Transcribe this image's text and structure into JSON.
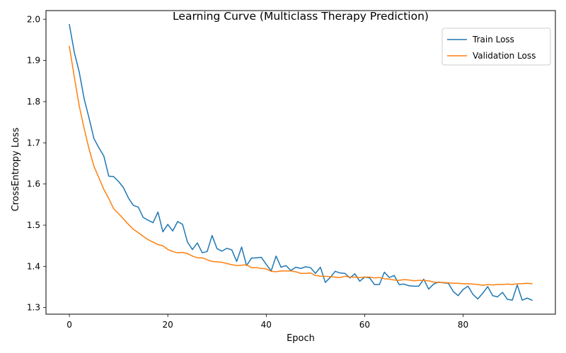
{
  "chart_data": {
    "type": "line",
    "title": "Learning Curve (Multiclass Therapy Prediction)",
    "xlabel": "Epoch",
    "ylabel": "CrossEntropy Loss",
    "xlim": [
      -4.75,
      98.75
    ],
    "ylim": [
      1.284,
      2.021
    ],
    "xticks": [
      0,
      20,
      40,
      60,
      80
    ],
    "xtick_labels": [
      "0",
      "20",
      "40",
      "60",
      "80"
    ],
    "yticks": [
      1.3,
      1.4,
      1.5,
      1.6,
      1.7,
      1.8,
      1.9,
      2.0
    ],
    "ytick_labels": [
      "1.3",
      "1.4",
      "1.5",
      "1.6",
      "1.7",
      "1.8",
      "1.9",
      "2.0"
    ],
    "grid": false,
    "legend_position": "top-right",
    "series": [
      {
        "name": "Train Loss",
        "color": "#1f77b4",
        "x": [
          0,
          1,
          2,
          3,
          4,
          5,
          6,
          7,
          8,
          9,
          10,
          11,
          12,
          13,
          14,
          15,
          16,
          17,
          18,
          19,
          20,
          21,
          22,
          23,
          24,
          25,
          26,
          27,
          28,
          29,
          30,
          31,
          32,
          33,
          34,
          35,
          36,
          37,
          38,
          39,
          40,
          41,
          42,
          43,
          44,
          45,
          46,
          47,
          48,
          49,
          50,
          51,
          52,
          53,
          54,
          55,
          56,
          57,
          58,
          59,
          60,
          61,
          62,
          63,
          64,
          65,
          66,
          67,
          68,
          69,
          70,
          71,
          72,
          73,
          74,
          75,
          76,
          77,
          78,
          79,
          80,
          81,
          82,
          83,
          84,
          85,
          86,
          87,
          88,
          89,
          90,
          91,
          92,
          93,
          94
        ],
        "y": [
          1.987,
          1.92,
          1.872,
          1.807,
          1.76,
          1.71,
          1.688,
          1.668,
          1.619,
          1.618,
          1.606,
          1.591,
          1.566,
          1.548,
          1.544,
          1.519,
          1.512,
          1.506,
          1.532,
          1.484,
          1.502,
          1.486,
          1.509,
          1.502,
          1.459,
          1.441,
          1.457,
          1.433,
          1.436,
          1.475,
          1.443,
          1.437,
          1.444,
          1.44,
          1.412,
          1.447,
          1.402,
          1.42,
          1.421,
          1.422,
          1.405,
          1.389,
          1.425,
          1.398,
          1.402,
          1.39,
          1.398,
          1.395,
          1.399,
          1.397,
          1.383,
          1.398,
          1.361,
          1.373,
          1.388,
          1.384,
          1.383,
          1.372,
          1.382,
          1.364,
          1.374,
          1.372,
          1.356,
          1.356,
          1.386,
          1.373,
          1.378,
          1.356,
          1.357,
          1.353,
          1.352,
          1.352,
          1.369,
          1.345,
          1.357,
          1.362,
          1.36,
          1.359,
          1.339,
          1.329,
          1.344,
          1.352,
          1.332,
          1.321,
          1.335,
          1.351,
          1.329,
          1.326,
          1.337,
          1.32,
          1.318,
          1.355,
          1.318,
          1.323,
          1.318
        ]
      },
      {
        "name": "Validation Loss",
        "color": "#ff7f0e",
        "x": [
          0,
          1,
          2,
          3,
          4,
          5,
          6,
          7,
          8,
          9,
          10,
          11,
          12,
          13,
          14,
          15,
          16,
          17,
          18,
          19,
          20,
          21,
          22,
          23,
          24,
          25,
          26,
          27,
          28,
          29,
          30,
          31,
          32,
          33,
          34,
          35,
          36,
          37,
          38,
          39,
          40,
          41,
          42,
          43,
          44,
          45,
          46,
          47,
          48,
          49,
          50,
          51,
          52,
          53,
          54,
          55,
          56,
          57,
          58,
          59,
          60,
          61,
          62,
          63,
          64,
          65,
          66,
          67,
          68,
          69,
          70,
          71,
          72,
          73,
          74,
          75,
          76,
          77,
          78,
          79,
          80,
          81,
          82,
          83,
          84,
          85,
          86,
          87,
          88,
          89,
          90,
          91,
          92,
          93,
          94
        ],
        "y": [
          1.934,
          1.86,
          1.79,
          1.735,
          1.685,
          1.643,
          1.615,
          1.587,
          1.565,
          1.54,
          1.528,
          1.515,
          1.502,
          1.49,
          1.482,
          1.473,
          1.465,
          1.459,
          1.453,
          1.45,
          1.441,
          1.436,
          1.433,
          1.434,
          1.431,
          1.425,
          1.421,
          1.421,
          1.416,
          1.412,
          1.411,
          1.41,
          1.407,
          1.404,
          1.402,
          1.403,
          1.404,
          1.397,
          1.397,
          1.395,
          1.394,
          1.388,
          1.387,
          1.389,
          1.389,
          1.389,
          1.387,
          1.383,
          1.383,
          1.384,
          1.378,
          1.376,
          1.376,
          1.375,
          1.374,
          1.373,
          1.376,
          1.374,
          1.374,
          1.373,
          1.374,
          1.374,
          1.372,
          1.373,
          1.37,
          1.369,
          1.367,
          1.366,
          1.368,
          1.367,
          1.365,
          1.366,
          1.366,
          1.365,
          1.362,
          1.361,
          1.361,
          1.36,
          1.359,
          1.359,
          1.358,
          1.358,
          1.357,
          1.356,
          1.354,
          1.356,
          1.355,
          1.356,
          1.356,
          1.357,
          1.356,
          1.358,
          1.358,
          1.359,
          1.358
        ]
      }
    ]
  }
}
